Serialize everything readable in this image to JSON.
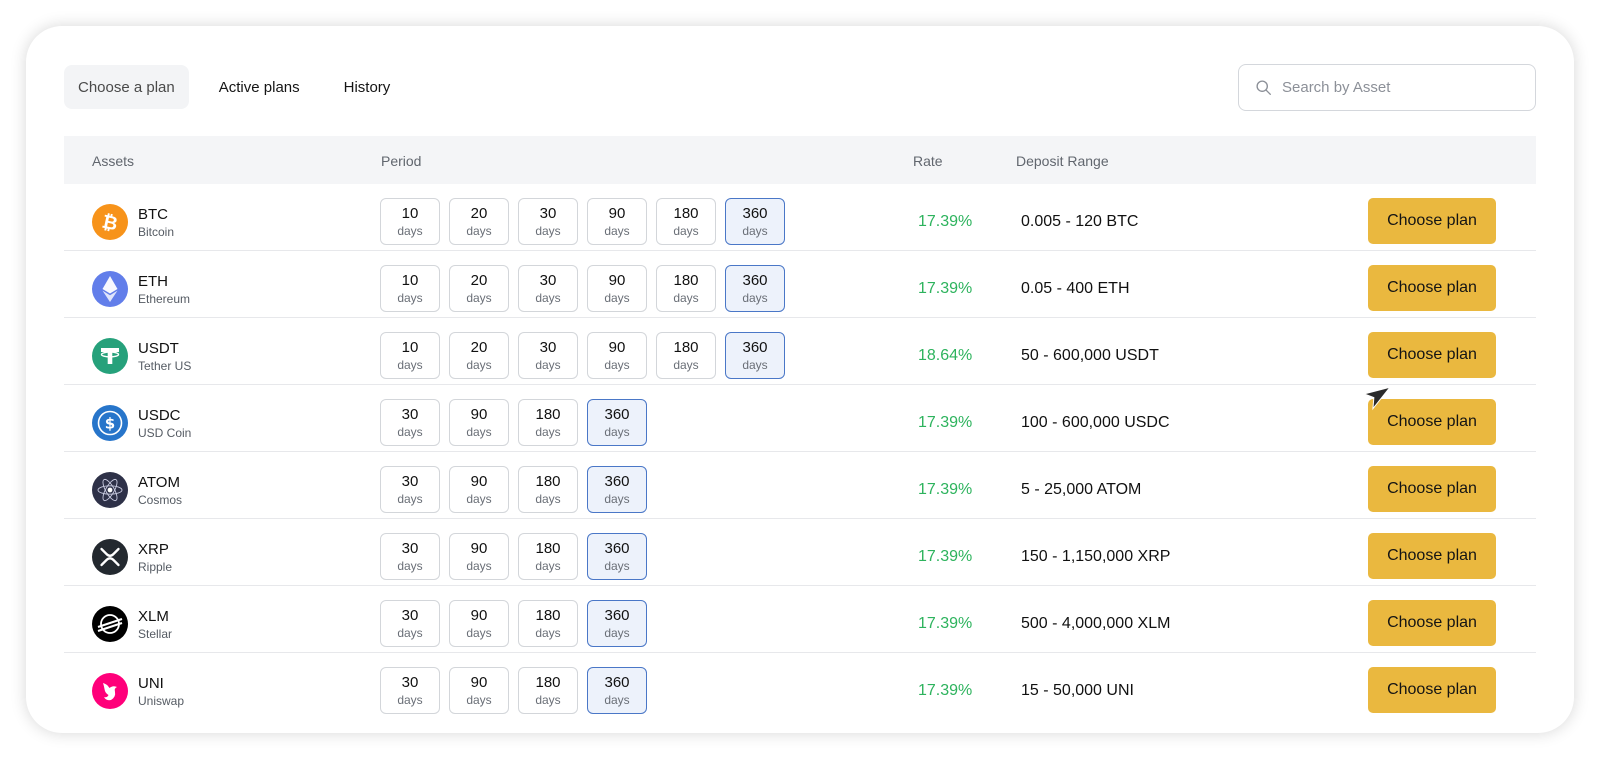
{
  "tabs": [
    {
      "label": "Choose a plan",
      "active": true
    },
    {
      "label": "Active plans",
      "active": false
    },
    {
      "label": "History",
      "active": false
    }
  ],
  "search": {
    "placeholder": "Search by Asset",
    "value": "",
    "icon": "search-icon"
  },
  "table": {
    "headers": {
      "assets": "Assets",
      "period": "Period",
      "rate": "Rate",
      "deposit_range": "Deposit Range"
    },
    "unit_label": "days",
    "action_label": "Choose plan",
    "rows": [
      {
        "ticker": "BTC",
        "name": "Bitcoin",
        "icon": "bitcoin-icon",
        "color": "#f7931a",
        "periods": [
          "10",
          "20",
          "30",
          "90",
          "180",
          "360"
        ],
        "selected": "360",
        "rate": "17.39%",
        "range": "0.005 - 120 BTC"
      },
      {
        "ticker": "ETH",
        "name": "Ethereum",
        "icon": "ethereum-icon",
        "color": "#627eea",
        "periods": [
          "10",
          "20",
          "30",
          "90",
          "180",
          "360"
        ],
        "selected": "360",
        "rate": "17.39%",
        "range": "0.05 - 400 ETH"
      },
      {
        "ticker": "USDT",
        "name": "Tether US",
        "icon": "tether-icon",
        "color": "#26a17b",
        "periods": [
          "10",
          "20",
          "30",
          "90",
          "180",
          "360"
        ],
        "selected": "360",
        "rate": "18.64%",
        "range": "50 - 600,000 USDT"
      },
      {
        "ticker": "USDC",
        "name": "USD Coin",
        "icon": "usd-coin-icon",
        "color": "#2775ca",
        "periods": [
          "30",
          "90",
          "180",
          "360"
        ],
        "selected": "360",
        "rate": "17.39%",
        "range": "100 - 600,000 USDC"
      },
      {
        "ticker": "ATOM",
        "name": "Cosmos",
        "icon": "cosmos-icon",
        "color": "#2e3148",
        "periods": [
          "30",
          "90",
          "180",
          "360"
        ],
        "selected": "360",
        "rate": "17.39%",
        "range": "5 - 25,000 ATOM"
      },
      {
        "ticker": "XRP",
        "name": "Ripple",
        "icon": "ripple-icon",
        "color": "#23292f",
        "periods": [
          "30",
          "90",
          "180",
          "360"
        ],
        "selected": "360",
        "rate": "17.39%",
        "range": "150 - 1,150,000 XRP"
      },
      {
        "ticker": "XLM",
        "name": "Stellar",
        "icon": "stellar-icon",
        "color": "#000000",
        "periods": [
          "30",
          "90",
          "180",
          "360"
        ],
        "selected": "360",
        "rate": "17.39%",
        "range": "500 - 4,000,000 XLM"
      },
      {
        "ticker": "UNI",
        "name": "Uniswap",
        "icon": "uniswap-icon",
        "color": "#ff007a",
        "periods": [
          "30",
          "90",
          "180",
          "360"
        ],
        "selected": "360",
        "rate": "17.39%",
        "range": "15 - 50,000 UNI"
      }
    ]
  },
  "colors": {
    "accent_button": "#eab83f",
    "rate_green": "#2db35d",
    "selected_period_border": "#4a77c7"
  }
}
